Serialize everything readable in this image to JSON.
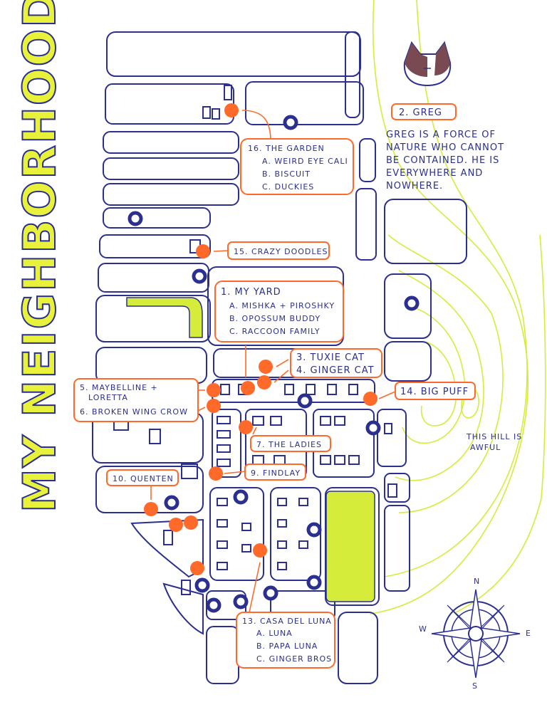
{
  "title": "MY NEIGHBORHOOD",
  "colors": {
    "ink": "#2b2f8f",
    "highlight": "#e8f23a",
    "pin": "#ff6a2a"
  },
  "greg": {
    "label": "2. GREG",
    "desc": [
      "GREG IS A FORCE OF",
      "NATURE WHO CANNOT",
      "BE CONTAINED. HE IS",
      "EVERYWHERE AND",
      "NOWHERE."
    ]
  },
  "garden": {
    "title": "16. THE GARDEN",
    "items": [
      "A. WEIRD EYE CALI",
      "B. BISCUIT",
      "C. DUCKIES"
    ]
  },
  "doodles": "15. CRAZY DOODLES",
  "myyard": {
    "title": "1. MY YARD",
    "items": [
      "A. MISHKA + PIROSHKY",
      "B. OPOSSUM BUDDY",
      "C. RACCOON FAMILY"
    ]
  },
  "tuxie": [
    "3. TUXIE CAT",
    "4. GINGER CAT"
  ],
  "bigpuff": "14. BIG PUFF",
  "maybelline": [
    "5. MAYBELLINE +",
    "LORETTA",
    "6. BROKEN WING CROW"
  ],
  "ladies": "7. THE LADIES",
  "findlay": "9. FINDLAY",
  "quenten": "10. QUENTEN",
  "hill": [
    "THIS HILL IS",
    "AWFUL"
  ],
  "casa": {
    "title": "13. CASA DEL LUNA",
    "items": [
      "A. LUNA",
      "B. PAPA LUNA",
      "C. GINGER BROS"
    ]
  },
  "compass": {
    "n": "N",
    "s": "S",
    "e": "E",
    "w": "W"
  }
}
